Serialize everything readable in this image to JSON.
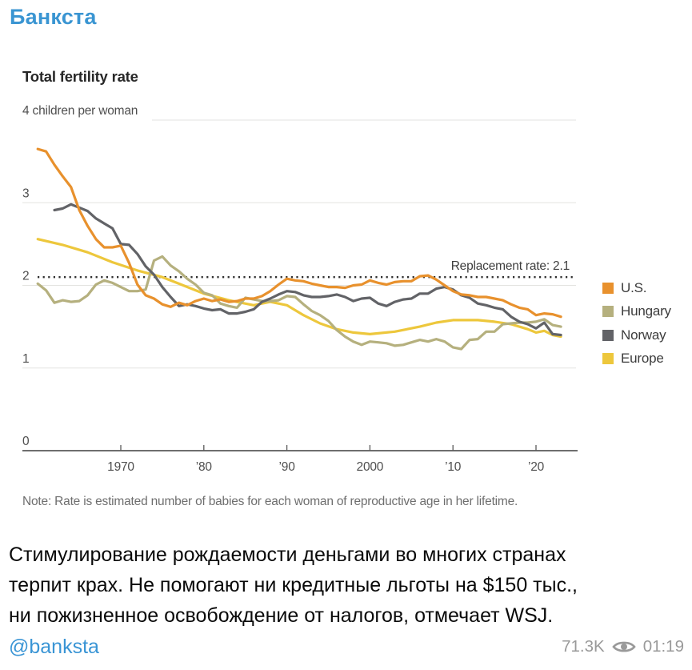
{
  "header": {
    "channel_name": "Банкста"
  },
  "post": {
    "text_lines": [
      "Стимулирование рождаемости деньгами во многих странах",
      "терпит крах. Не помогают ни кредитные льготы на $150 тыс.,",
      "ни пожизненное освобождение от налогов, отмечает WSJ."
    ],
    "mention": "@banksta",
    "views": "71.3K",
    "time": "01:19",
    "link_color": "#3a95d5"
  },
  "chart_data": {
    "type": "line",
    "title": "Total fertility rate",
    "unit_label": "4 children per woman",
    "annotation": "Replacement rate: 2.1",
    "replacement_rate": 2.1,
    "note": "Note: Rate is estimated number of babies for each woman of reproductive age in her lifetime.",
    "ylim": [
      0,
      4
    ],
    "xlim": [
      1960,
      2024
    ],
    "grid": true,
    "legend_position": "right",
    "y_ticks": [
      {
        "value": 0,
        "label": "0"
      },
      {
        "value": 1,
        "label": "1"
      },
      {
        "value": 2,
        "label": "2"
      },
      {
        "value": 3,
        "label": "3"
      },
      {
        "value": 4,
        "label": ""
      }
    ],
    "x_ticks": [
      {
        "year": 1970,
        "label": "1970"
      },
      {
        "year": 1980,
        "label": "’80"
      },
      {
        "year": 1990,
        "label": "’90"
      },
      {
        "year": 2000,
        "label": "2000"
      },
      {
        "year": 2010,
        "label": "’10"
      },
      {
        "year": 2020,
        "label": "’20"
      }
    ],
    "series": [
      {
        "name": "europe",
        "label": "Europe",
        "color": "#edc73c",
        "points": [
          [
            1960,
            2.56
          ],
          [
            1963,
            2.49
          ],
          [
            1966,
            2.4
          ],
          [
            1969,
            2.28
          ],
          [
            1972,
            2.18
          ],
          [
            1975,
            2.1
          ],
          [
            1977,
            2.02
          ],
          [
            1980,
            1.9
          ],
          [
            1983,
            1.82
          ],
          [
            1986,
            1.76
          ],
          [
            1988,
            1.8
          ],
          [
            1990,
            1.76
          ],
          [
            1992,
            1.64
          ],
          [
            1994,
            1.54
          ],
          [
            1996,
            1.47
          ],
          [
            1998,
            1.43
          ],
          [
            2000,
            1.41
          ],
          [
            2003,
            1.44
          ],
          [
            2006,
            1.5
          ],
          [
            2008,
            1.55
          ],
          [
            2010,
            1.58
          ],
          [
            2013,
            1.58
          ],
          [
            2015,
            1.56
          ],
          [
            2017,
            1.53
          ],
          [
            2019,
            1.47
          ],
          [
            2020,
            1.43
          ],
          [
            2021,
            1.45
          ],
          [
            2022,
            1.4
          ],
          [
            2023,
            1.38
          ]
        ]
      },
      {
        "name": "hungary",
        "label": "Hungary",
        "color": "#b5b07e",
        "points": [
          [
            1960,
            2.02
          ],
          [
            1961,
            1.94
          ],
          [
            1962,
            1.79
          ],
          [
            1963,
            1.82
          ],
          [
            1964,
            1.8
          ],
          [
            1965,
            1.81
          ],
          [
            1966,
            1.88
          ],
          [
            1967,
            2.01
          ],
          [
            1968,
            2.06
          ],
          [
            1969,
            2.03
          ],
          [
            1970,
            1.98
          ],
          [
            1971,
            1.93
          ],
          [
            1972,
            1.93
          ],
          [
            1973,
            1.95
          ],
          [
            1974,
            2.3
          ],
          [
            1975,
            2.35
          ],
          [
            1976,
            2.24
          ],
          [
            1977,
            2.17
          ],
          [
            1978,
            2.08
          ],
          [
            1979,
            2.01
          ],
          [
            1980,
            1.91
          ],
          [
            1981,
            1.88
          ],
          [
            1982,
            1.78
          ],
          [
            1983,
            1.75
          ],
          [
            1984,
            1.73
          ],
          [
            1985,
            1.85
          ],
          [
            1986,
            1.83
          ],
          [
            1987,
            1.81
          ],
          [
            1988,
            1.81
          ],
          [
            1989,
            1.82
          ],
          [
            1990,
            1.87
          ],
          [
            1991,
            1.86
          ],
          [
            1992,
            1.77
          ],
          [
            1993,
            1.69
          ],
          [
            1994,
            1.64
          ],
          [
            1995,
            1.57
          ],
          [
            1996,
            1.46
          ],
          [
            1997,
            1.38
          ],
          [
            1998,
            1.32
          ],
          [
            1999,
            1.28
          ],
          [
            2000,
            1.32
          ],
          [
            2001,
            1.31
          ],
          [
            2002,
            1.3
          ],
          [
            2003,
            1.27
          ],
          [
            2004,
            1.28
          ],
          [
            2005,
            1.31
          ],
          [
            2006,
            1.34
          ],
          [
            2007,
            1.32
          ],
          [
            2008,
            1.35
          ],
          [
            2009,
            1.32
          ],
          [
            2010,
            1.25
          ],
          [
            2011,
            1.23
          ],
          [
            2012,
            1.34
          ],
          [
            2013,
            1.35
          ],
          [
            2014,
            1.44
          ],
          [
            2015,
            1.44
          ],
          [
            2016,
            1.53
          ],
          [
            2017,
            1.54
          ],
          [
            2018,
            1.55
          ],
          [
            2019,
            1.55
          ],
          [
            2020,
            1.56
          ],
          [
            2021,
            1.59
          ],
          [
            2022,
            1.52
          ],
          [
            2023,
            1.5
          ]
        ]
      },
      {
        "name": "norway",
        "label": "Norway",
        "color": "#626367",
        "points": [
          [
            1962,
            2.91
          ],
          [
            1963,
            2.93
          ],
          [
            1964,
            2.98
          ],
          [
            1965,
            2.94
          ],
          [
            1966,
            2.9
          ],
          [
            1967,
            2.81
          ],
          [
            1968,
            2.75
          ],
          [
            1969,
            2.69
          ],
          [
            1970,
            2.5
          ],
          [
            1971,
            2.49
          ],
          [
            1972,
            2.38
          ],
          [
            1973,
            2.23
          ],
          [
            1974,
            2.13
          ],
          [
            1975,
            1.98
          ],
          [
            1976,
            1.86
          ],
          [
            1977,
            1.75
          ],
          [
            1978,
            1.77
          ],
          [
            1979,
            1.75
          ],
          [
            1980,
            1.72
          ],
          [
            1981,
            1.7
          ],
          [
            1982,
            1.71
          ],
          [
            1983,
            1.66
          ],
          [
            1984,
            1.66
          ],
          [
            1985,
            1.68
          ],
          [
            1986,
            1.71
          ],
          [
            1987,
            1.8
          ],
          [
            1988,
            1.84
          ],
          [
            1989,
            1.89
          ],
          [
            1990,
            1.93
          ],
          [
            1991,
            1.92
          ],
          [
            1992,
            1.88
          ],
          [
            1993,
            1.86
          ],
          [
            1994,
            1.86
          ],
          [
            1995,
            1.87
          ],
          [
            1996,
            1.89
          ],
          [
            1997,
            1.86
          ],
          [
            1998,
            1.81
          ],
          [
            1999,
            1.84
          ],
          [
            2000,
            1.85
          ],
          [
            2001,
            1.78
          ],
          [
            2002,
            1.75
          ],
          [
            2003,
            1.8
          ],
          [
            2004,
            1.83
          ],
          [
            2005,
            1.84
          ],
          [
            2006,
            1.9
          ],
          [
            2007,
            1.9
          ],
          [
            2008,
            1.96
          ],
          [
            2009,
            1.98
          ],
          [
            2010,
            1.95
          ],
          [
            2011,
            1.88
          ],
          [
            2012,
            1.85
          ],
          [
            2013,
            1.78
          ],
          [
            2014,
            1.76
          ],
          [
            2015,
            1.73
          ],
          [
            2016,
            1.71
          ],
          [
            2017,
            1.62
          ],
          [
            2018,
            1.56
          ],
          [
            2019,
            1.53
          ],
          [
            2020,
            1.48
          ],
          [
            2021,
            1.55
          ],
          [
            2022,
            1.41
          ],
          [
            2023,
            1.4
          ]
        ]
      },
      {
        "name": "us",
        "label": "U.S.",
        "color": "#e8912d",
        "points": [
          [
            1960,
            3.65
          ],
          [
            1961,
            3.62
          ],
          [
            1962,
            3.46
          ],
          [
            1963,
            3.32
          ],
          [
            1964,
            3.19
          ],
          [
            1965,
            2.91
          ],
          [
            1966,
            2.72
          ],
          [
            1967,
            2.56
          ],
          [
            1968,
            2.46
          ],
          [
            1969,
            2.46
          ],
          [
            1970,
            2.48
          ],
          [
            1971,
            2.27
          ],
          [
            1972,
            2.01
          ],
          [
            1973,
            1.88
          ],
          [
            1974,
            1.84
          ],
          [
            1975,
            1.77
          ],
          [
            1976,
            1.74
          ],
          [
            1977,
            1.79
          ],
          [
            1978,
            1.76
          ],
          [
            1979,
            1.81
          ],
          [
            1980,
            1.84
          ],
          [
            1981,
            1.81
          ],
          [
            1982,
            1.83
          ],
          [
            1983,
            1.8
          ],
          [
            1984,
            1.81
          ],
          [
            1985,
            1.84
          ],
          [
            1986,
            1.84
          ],
          [
            1987,
            1.87
          ],
          [
            1988,
            1.93
          ],
          [
            1989,
            2.01
          ],
          [
            1990,
            2.08
          ],
          [
            1991,
            2.06
          ],
          [
            1992,
            2.05
          ],
          [
            1993,
            2.02
          ],
          [
            1994,
            2.0
          ],
          [
            1995,
            1.98
          ],
          [
            1996,
            1.98
          ],
          [
            1997,
            1.97
          ],
          [
            1998,
            2.0
          ],
          [
            1999,
            2.01
          ],
          [
            2000,
            2.06
          ],
          [
            2001,
            2.03
          ],
          [
            2002,
            2.01
          ],
          [
            2003,
            2.04
          ],
          [
            2004,
            2.05
          ],
          [
            2005,
            2.05
          ],
          [
            2006,
            2.11
          ],
          [
            2007,
            2.12
          ],
          [
            2008,
            2.07
          ],
          [
            2009,
            2.0
          ],
          [
            2010,
            1.93
          ],
          [
            2011,
            1.89
          ],
          [
            2012,
            1.88
          ],
          [
            2013,
            1.86
          ],
          [
            2014,
            1.86
          ],
          [
            2015,
            1.84
          ],
          [
            2016,
            1.82
          ],
          [
            2017,
            1.77
          ],
          [
            2018,
            1.73
          ],
          [
            2019,
            1.71
          ],
          [
            2020,
            1.64
          ],
          [
            2021,
            1.66
          ],
          [
            2022,
            1.65
          ],
          [
            2023,
            1.62
          ]
        ]
      }
    ],
    "legend_order": [
      "us",
      "hungary",
      "norway",
      "europe"
    ]
  }
}
